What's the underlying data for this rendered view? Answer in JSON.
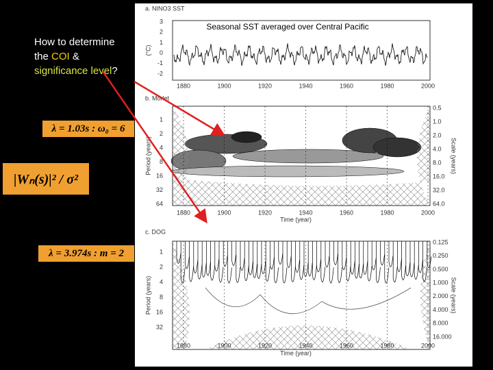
{
  "slide": {
    "question": {
      "line1": "How to determine",
      "the": "the",
      "coi": "COI",
      "amp": "&",
      "significance": "significance level",
      "qmark": "?"
    },
    "formulas": [
      "λ = 1.03s : ω₀ = 6",
      "|Wₙ(s)|² / σ²",
      "λ = 3.974s : m = 2"
    ],
    "figure": {
      "panel_a": {
        "title": "a. NINO3 SST",
        "annotation": "Seasonal SST averaged over Central Pacific",
        "ylabel": "(°C)",
        "yticks": [
          "3",
          "2",
          "1",
          "0",
          "-1",
          "-2"
        ],
        "xticks": [
          "1880",
          "1900",
          "1920",
          "1940",
          "1960",
          "1980",
          "2000"
        ]
      },
      "panel_b": {
        "title": "b. Morlet",
        "ylabel": "Period (years)",
        "y2label": "Scale (years)",
        "xlabel": "Time (year)",
        "yticks": [
          "1",
          "2",
          "4",
          "8",
          "16",
          "32",
          "64"
        ],
        "y2ticks": [
          "0.5",
          "1.0",
          "2.0",
          "4.0",
          "8.0",
          "16.0",
          "32.0",
          "64.0"
        ],
        "xticks": [
          "1880",
          "1900",
          "1920",
          "1940",
          "1960",
          "1980",
          "2000"
        ]
      },
      "panel_c": {
        "title": "c. DOG",
        "ylabel": "Period (years)",
        "y2label": "Scale (years)",
        "xlabel": "Time (year)",
        "yticks": [
          "1",
          "2",
          "4",
          "8",
          "16",
          "32"
        ],
        "y2ticks": [
          "0.125",
          "0.250",
          "0.500",
          "1.000",
          "2.000",
          "4.000",
          "8.000",
          "16.000"
        ],
        "xticks": [
          "1880",
          "1900",
          "1920",
          "1940",
          "1960",
          "1980",
          "2000"
        ]
      }
    }
  }
}
